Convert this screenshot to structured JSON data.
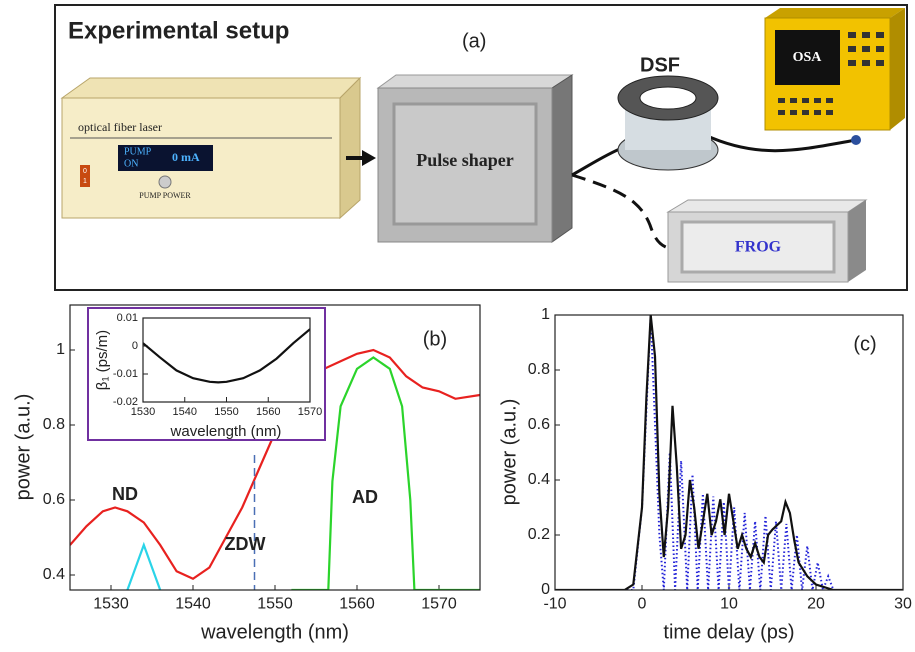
{
  "setup": {
    "title": "Experimental setup",
    "panel": "(a)",
    "laser": {
      "label": "optical fiber laser",
      "pump": "PUMP",
      "on": "ON",
      "current": "0 mA",
      "knob": "PUMP POWER",
      "switch": [
        "0",
        "1"
      ]
    },
    "shaper": "Pulse shaper",
    "fiber": "DSF",
    "osa": "OSA",
    "frog": "FROG"
  },
  "chart_data": [
    {
      "type": "line",
      "panel": "(b)",
      "xlabel": "wavelength (nm)",
      "ylabel": "power (a.u.)",
      "xlim": [
        1525,
        1575
      ],
      "xticks": [
        1530,
        1540,
        1550,
        1560,
        1570
      ],
      "ylim": [
        0.36,
        1.12
      ],
      "yticks": [
        0.4,
        0.6,
        0.8,
        1
      ],
      "series": [
        {
          "color": "#e8211f",
          "x": [
            1525,
            1527,
            1529,
            1530.5,
            1532,
            1534,
            1536,
            1538,
            1540,
            1542,
            1544,
            1546,
            1548,
            1550,
            1552,
            1554,
            1556,
            1558,
            1560,
            1562,
            1564,
            1566,
            1568,
            1570,
            1572,
            1575
          ],
          "values": [
            0.48,
            0.53,
            0.57,
            0.58,
            0.57,
            0.54,
            0.48,
            0.41,
            0.39,
            0.42,
            0.5,
            0.58,
            0.68,
            0.78,
            0.86,
            0.92,
            0.95,
            0.97,
            0.99,
            1.0,
            0.98,
            0.93,
            0.9,
            0.89,
            0.87,
            0.88
          ]
        },
        {
          "color": "#2ad4e8",
          "x": [
            1532,
            1533,
            1534,
            1535,
            1536
          ],
          "values": [
            0.36,
            0.42,
            0.48,
            0.42,
            0.36
          ]
        },
        {
          "color": "#2bd42b",
          "x": [
            1552,
            1556.5,
            1557,
            1558,
            1560,
            1562,
            1564,
            1565.5,
            1566.5,
            1567,
            1575
          ],
          "values": [
            0.36,
            0.36,
            0.65,
            0.85,
            0.95,
            0.98,
            0.95,
            0.85,
            0.6,
            0.36,
            0.36
          ]
        }
      ],
      "vline": 1547.5,
      "annotations": [
        "ND",
        "AD",
        "ZDW"
      ]
    },
    {
      "type": "line",
      "xlabel": "wavelength (nm)",
      "ylabel": "β₁ (ps/m)",
      "xlim": [
        1530,
        1570
      ],
      "xticks": [
        1530,
        1540,
        1550,
        1560,
        1570
      ],
      "ylim": [
        -0.02,
        0.01
      ],
      "yticks": [
        -0.02,
        -0.01,
        0,
        0.01
      ],
      "series": [
        {
          "color": "#111111",
          "x": [
            1530,
            1534,
            1538,
            1542,
            1546,
            1548,
            1550,
            1554,
            1558,
            1562,
            1566,
            1570
          ],
          "values": [
            0.001,
            -0.004,
            -0.0087,
            -0.0115,
            -0.0128,
            -0.013,
            -0.0128,
            -0.0115,
            -0.0087,
            -0.0045,
            0.001,
            0.006
          ]
        }
      ]
    },
    {
      "type": "line",
      "panel": "(c)",
      "xlabel": "time delay (ps)",
      "ylabel": "power (a.u.)",
      "xlim": [
        -10,
        30
      ],
      "xticks": [
        -10,
        0,
        10,
        20,
        30
      ],
      "ylim": [
        0,
        1
      ],
      "yticks": [
        0,
        0.2,
        0.4,
        0.6,
        0.8,
        1
      ],
      "series": [
        {
          "color": "#2424d8",
          "dash": "dotted",
          "x": [
            -10,
            -1,
            0,
            1,
            2,
            2.5,
            3.2,
            3.8,
            4.5,
            5.2,
            5.8,
            6.4,
            7,
            7.6,
            8.2,
            8.8,
            9.4,
            10,
            10.6,
            11.2,
            11.8,
            12.4,
            13,
            13.6,
            14.2,
            14.8,
            15.4,
            16,
            16.6,
            17.2,
            17.8,
            18.4,
            19,
            19.6,
            20.2,
            20.8,
            21.4,
            22,
            30
          ],
          "values": [
            0,
            0,
            0.3,
            1,
            0.2,
            0,
            0.5,
            0,
            0.47,
            0,
            0.42,
            0,
            0.35,
            0,
            0.34,
            0,
            0.32,
            0,
            0.3,
            0,
            0.28,
            0,
            0.25,
            0,
            0.27,
            0,
            0.25,
            0,
            0.24,
            0,
            0.2,
            0,
            0.16,
            0,
            0.1,
            0,
            0.05,
            0,
            0
          ]
        },
        {
          "color": "#111111",
          "x": [
            -10,
            -2,
            -1,
            0,
            0.5,
            1,
            1.5,
            2,
            2.5,
            3,
            3.5,
            4,
            4.5,
            5,
            5.5,
            6,
            6.5,
            7,
            7.5,
            8,
            8.5,
            9,
            9.5,
            10,
            10.5,
            11,
            11.5,
            12,
            12.5,
            13,
            13.5,
            14,
            14.5,
            15,
            16,
            16.5,
            17,
            17.5,
            18,
            19,
            20,
            22,
            30
          ],
          "values": [
            0,
            0,
            0.02,
            0.3,
            0.7,
            1,
            0.85,
            0.35,
            0.12,
            0.3,
            0.67,
            0.45,
            0.15,
            0.2,
            0.4,
            0.3,
            0.15,
            0.25,
            0.35,
            0.2,
            0.25,
            0.33,
            0.2,
            0.35,
            0.25,
            0.15,
            0.2,
            0.15,
            0.12,
            0.17,
            0.12,
            0.1,
            0.2,
            0.22,
            0.25,
            0.32,
            0.28,
            0.18,
            0.1,
            0.05,
            0.02,
            0,
            0
          ]
        }
      ]
    }
  ]
}
